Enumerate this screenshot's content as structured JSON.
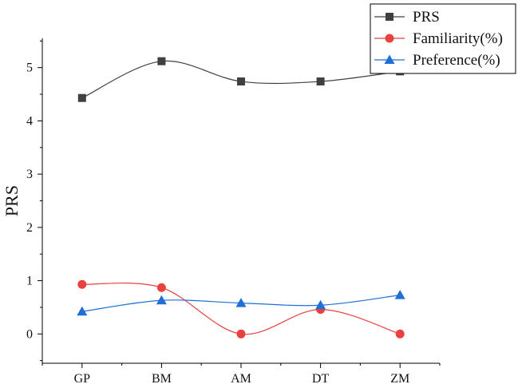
{
  "chart_data": {
    "type": "line",
    "title": "",
    "xlabel": "",
    "ylabel": "PRS",
    "categories": [
      "GP",
      "BM",
      "AM",
      "DT",
      "ZM"
    ],
    "ylim": [
      -0.55,
      5.55
    ],
    "yticks": [
      0,
      1,
      2,
      3,
      4,
      5
    ],
    "grid": false,
    "smooth": true,
    "legend_position": "top-right",
    "series": [
      {
        "name": "PRS",
        "marker": "square",
        "color": "#404040",
        "values": [
          4.43,
          5.12,
          4.74,
          4.74,
          4.93
        ]
      },
      {
        "name": "Familiarity(%)",
        "marker": "circle",
        "color": "#e8423f",
        "values": [
          0.93,
          0.87,
          0.0,
          0.46,
          0.0
        ]
      },
      {
        "name": "Preference(%)",
        "marker": "triangle",
        "color": "#1f6fd6",
        "values": [
          0.42,
          0.63,
          0.58,
          0.54,
          0.73
        ]
      }
    ]
  }
}
